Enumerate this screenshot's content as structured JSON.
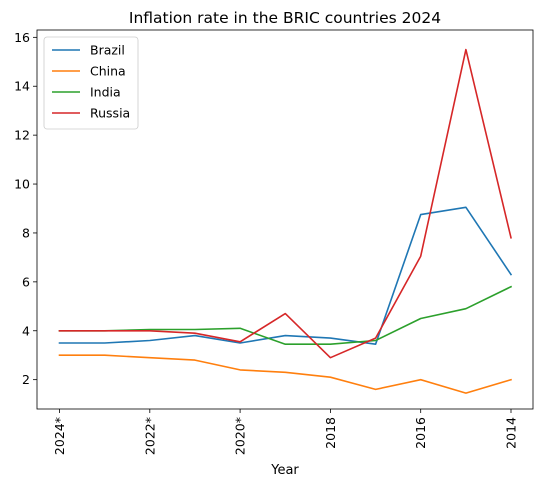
{
  "chart_data": {
    "type": "line",
    "title": "Inflation rate in the BRIC countries 2024",
    "xlabel": "Year",
    "ylabel": "",
    "categories": [
      "2024*",
      "2023*",
      "2022*",
      "2021*",
      "2020*",
      "2019",
      "2018",
      "2017",
      "2016",
      "2015",
      "2014"
    ],
    "x_tick_labels": [
      "2024*",
      "",
      "2022*",
      "",
      "2020*",
      "",
      "2018",
      "",
      "2016",
      "",
      "2014"
    ],
    "ylim": [
      0.8,
      16.3
    ],
    "y_ticks": [
      2,
      4,
      6,
      8,
      10,
      12,
      14,
      16
    ],
    "grid": false,
    "legend_position": "top-left",
    "series": [
      {
        "name": "Brazil",
        "color": "#1f77b4",
        "values": [
          3.5,
          3.5,
          3.6,
          3.8,
          3.5,
          3.8,
          3.7,
          3.45,
          8.75,
          9.05,
          6.3
        ]
      },
      {
        "name": "China",
        "color": "#ff7f0e",
        "values": [
          3.0,
          3.0,
          2.9,
          2.8,
          2.4,
          2.3,
          2.1,
          1.6,
          2.0,
          1.45,
          2.0
        ]
      },
      {
        "name": "India",
        "color": "#2ca02c",
        "values": [
          4.0,
          4.0,
          4.05,
          4.05,
          4.1,
          3.45,
          3.45,
          3.6,
          4.5,
          4.9,
          5.8
        ]
      },
      {
        "name": "Russia",
        "color": "#d62728",
        "values": [
          4.0,
          4.0,
          4.0,
          3.9,
          3.55,
          4.7,
          2.9,
          3.7,
          7.05,
          15.5,
          7.8
        ]
      }
    ]
  }
}
